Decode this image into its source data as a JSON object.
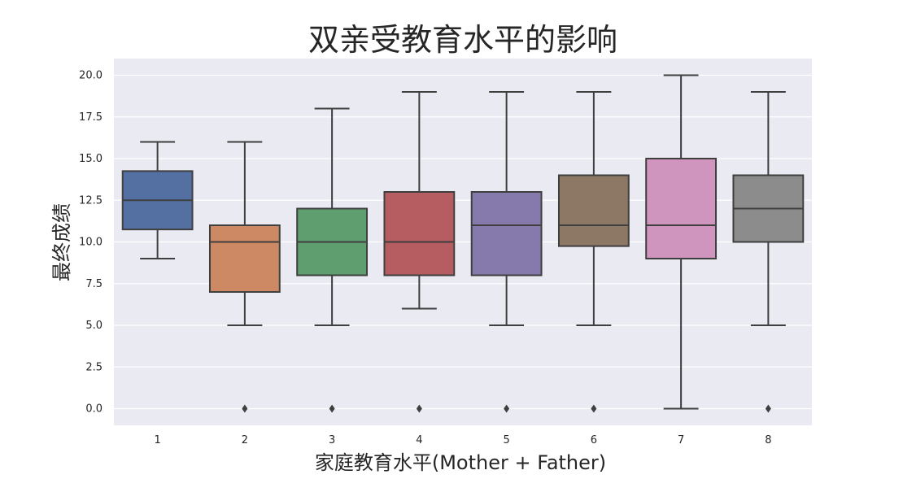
{
  "chart_data": {
    "type": "boxplot",
    "title": "双亲受教育水平的影响",
    "xlabel": "家庭教育水平(Mother + Father)",
    "ylabel": "最终成绩",
    "ylim": [
      -1,
      21
    ],
    "yticks": [
      "0.0",
      "2.5",
      "5.0",
      "7.5",
      "10.0",
      "12.5",
      "15.0",
      "17.5",
      "20.0"
    ],
    "grid": true,
    "background": "#eaeaf2",
    "categories": [
      "1",
      "2",
      "3",
      "4",
      "5",
      "6",
      "7",
      "8"
    ],
    "colors": [
      "#5470a3",
      "#cc8963",
      "#5f9e6e",
      "#b55d60",
      "#857aab",
      "#8d7866",
      "#d095bf",
      "#8c8c8c"
    ],
    "boxes": [
      {
        "whisker_low": 9,
        "q1": 10.75,
        "median": 12.5,
        "q3": 14.25,
        "whisker_high": 16,
        "outliers": []
      },
      {
        "whisker_low": 5,
        "q1": 7,
        "median": 10,
        "q3": 11,
        "whisker_high": 16,
        "outliers": [
          0
        ]
      },
      {
        "whisker_low": 5,
        "q1": 8,
        "median": 10,
        "q3": 12,
        "whisker_high": 18,
        "outliers": [
          0
        ]
      },
      {
        "whisker_low": 6,
        "q1": 8,
        "median": 10,
        "q3": 13,
        "whisker_high": 19,
        "outliers": [
          0
        ]
      },
      {
        "whisker_low": 5,
        "q1": 8,
        "median": 11,
        "q3": 13,
        "whisker_high": 19,
        "outliers": [
          0
        ]
      },
      {
        "whisker_low": 5,
        "q1": 9.75,
        "median": 11,
        "q3": 14,
        "whisker_high": 19,
        "outliers": [
          0
        ]
      },
      {
        "whisker_low": 0,
        "q1": 9,
        "median": 11,
        "q3": 15,
        "whisker_high": 20,
        "outliers": []
      },
      {
        "whisker_low": 5,
        "q1": 10,
        "median": 12,
        "q3": 14,
        "whisker_high": 19,
        "outliers": [
          0
        ]
      }
    ]
  }
}
